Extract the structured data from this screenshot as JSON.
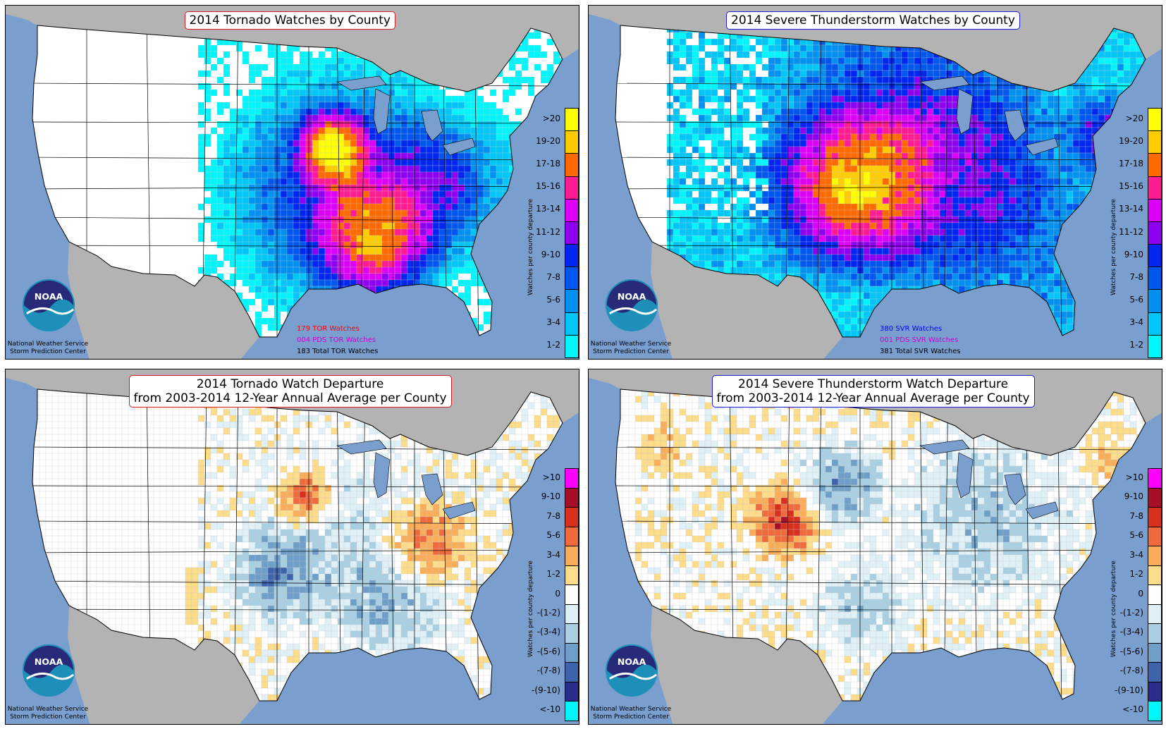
{
  "panels": [
    {
      "id": "tor",
      "title_lines": [
        "2014 Tornado Watches by County"
      ],
      "border_color": "#d71920",
      "legend_labels": [
        "1-2",
        "3-4",
        "5-6",
        "7-8",
        "9-10",
        "11-12",
        "13-14",
        "15-16",
        "17-18",
        "19-20",
        ">20"
      ],
      "legend_colors": [
        "#00f6fb",
        "#00c6f7",
        "#0090f0",
        "#0057ee",
        "#0026f0",
        "#8e00f0",
        "#dd00f8",
        "#ff1b91",
        "#ff6a00",
        "#ffcc00",
        "#ffff00"
      ],
      "axis_label": "Watches per county departure",
      "stats": [
        {
          "text": "179 TOR Watches",
          "color": "#ff0000"
        },
        {
          "text": "004 PDS TOR Watches",
          "color": "#cc00cc"
        },
        {
          "text": "183 Total TOR Watches",
          "color": "#000000"
        }
      ]
    },
    {
      "id": "svr",
      "title_lines": [
        "2014 Severe Thunderstorm Watches by County"
      ],
      "border_color": "#1c1cd6",
      "legend_labels": [
        "1-2",
        "3-4",
        "5-6",
        "7-8",
        "9-10",
        "11-12",
        "13-14",
        "15-16",
        "17-18",
        "19-20",
        ">20"
      ],
      "legend_colors": [
        "#00f6fb",
        "#00c6f7",
        "#0090f0",
        "#0057ee",
        "#0026f0",
        "#8e00f0",
        "#dd00f8",
        "#ff1b91",
        "#ff6a00",
        "#ffcc00",
        "#ffff00"
      ],
      "axis_label": "Watches per county departure",
      "stats": [
        {
          "text": "380 SVR Watches",
          "color": "#0000ff"
        },
        {
          "text": "001 PDS SVR Watches",
          "color": "#cc00cc"
        },
        {
          "text": "381 Total SVR Watches",
          "color": "#000000"
        }
      ]
    },
    {
      "id": "tordep",
      "title_lines": [
        "2014 Tornado Watch Departure",
        "from 2003-2014 12-Year Annual Average per County"
      ],
      "border_color": "#d71920",
      "legend_labels": [
        "<-10",
        "-(9-10)",
        "-(7-8)",
        "-(5-6)",
        "-(3-4)",
        "-(1-2)",
        "0",
        "1-2",
        "3-4",
        "5-6",
        "7-8",
        "9-10",
        ">10"
      ],
      "legend_colors": [
        "#00f6fb",
        "#2b2d8c",
        "#3d63aa",
        "#6f9ec8",
        "#a8cfe2",
        "#dff0f7",
        "#ffffff",
        "#fddc8a",
        "#f9ad5a",
        "#ef6a3d",
        "#d7301f",
        "#a50f28",
        "#ff00ff"
      ],
      "axis_label": "Watches per county departure",
      "stats": []
    },
    {
      "id": "svrdep",
      "title_lines": [
        "2014 Severe Thunderstorm Watch Departure",
        "from 2003-2014 12-Year Annual Average per County"
      ],
      "border_color": "#1c1cd6",
      "legend_labels": [
        "<-10",
        "-(9-10)",
        "-(7-8)",
        "-(5-6)",
        "-(3-4)",
        "-(1-2)",
        "0",
        "1-2",
        "3-4",
        "5-6",
        "7-8",
        "9-10",
        ">10"
      ],
      "legend_colors": [
        "#00f6fb",
        "#2b2d8c",
        "#3d63aa",
        "#6f9ec8",
        "#a8cfe2",
        "#dff0f7",
        "#ffffff",
        "#fddc8a",
        "#f9ad5a",
        "#ef6a3d",
        "#d7301f",
        "#a50f28",
        "#ff00ff"
      ],
      "axis_label": "Watches per county departure",
      "stats": []
    }
  ],
  "credit_lines": [
    "National Weather Service",
    "Storm Prediction Center"
  ],
  "logo_text": "NOAA",
  "colors": {
    "ocean": "#7a9fcf",
    "land_foreign": "#b3b3b3",
    "land_us": "#ffffff"
  }
}
